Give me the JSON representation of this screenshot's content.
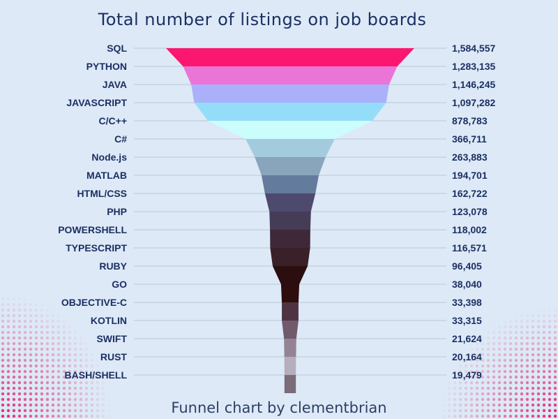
{
  "chart_data": {
    "type": "funnel",
    "title": "Total number of listings on job boards",
    "caption": "Funnel chart by clementbrian",
    "categories": [
      "SQL",
      "PYTHON",
      "JAVA",
      "JAVASCRIPT",
      "C/C++",
      "C#",
      "Node.js",
      "MATLAB",
      "HTML/CSS",
      "PHP",
      "POWERSHELL",
      "TYPESCRIPT",
      "RUBY",
      "GO",
      "OBJECTIVE-C",
      "KOTLIN",
      "SWIFT",
      "RUST",
      "BASH/SHELL"
    ],
    "values": [
      1584557,
      1283135,
      1146245,
      1097282,
      878783,
      366711,
      263883,
      194701,
      162722,
      123078,
      118002,
      116571,
      96405,
      38040,
      33398,
      33315,
      21624,
      20164,
      19479
    ],
    "value_labels": [
      "1,584,557",
      "1,283,135",
      "1,146,245",
      "1,097,282",
      "878,783",
      "366,711",
      "263,883",
      "194,701",
      "162,722",
      "123,078",
      "118,002",
      "116,571",
      "96,405",
      "38,040",
      "33,398",
      "33,315",
      "21,624",
      "20,164",
      "19,479"
    ],
    "colors": [
      "#fb1670",
      "#ea75d6",
      "#abb0fb",
      "#94ddf8",
      "#cbfdfd",
      "#a3cbdd",
      "#88a5bb",
      "#637b9c",
      "#4e4a6e",
      "#453c58",
      "#3e2938",
      "#3a2028",
      "#2b0e10",
      "#2d0d0e",
      "#4f3342",
      "#705a6c",
      "#948395",
      "#b5aebc",
      "#7a6b78"
    ],
    "grid": true,
    "legend": "none"
  }
}
